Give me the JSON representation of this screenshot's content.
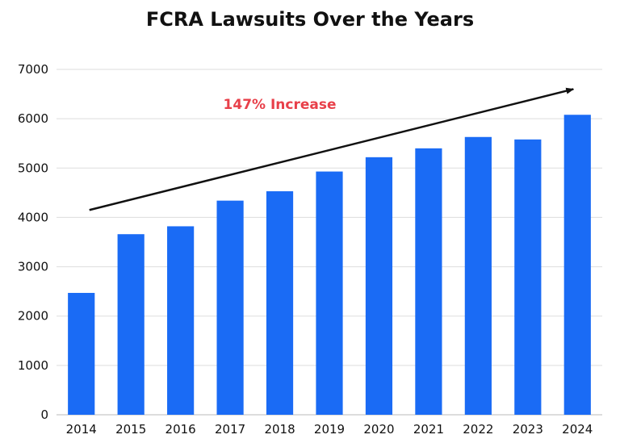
{
  "chart_data": {
    "type": "bar",
    "title": "FCRA Lawsuits Over the Years",
    "categories": [
      "2014",
      "2015",
      "2016",
      "2017",
      "2018",
      "2019",
      "2020",
      "2021",
      "2022",
      "2023",
      "2024"
    ],
    "values": [
      2470,
      3660,
      3820,
      4340,
      4530,
      4930,
      5220,
      5400,
      5630,
      5580,
      6080
    ],
    "ylim": [
      0,
      7000
    ],
    "yticks": [
      0,
      1000,
      2000,
      3000,
      4000,
      5000,
      6000,
      7000
    ],
    "grid": true,
    "bar_color": "#1a6bf5",
    "annotation": {
      "text": "147% Increase",
      "color": "#e8404a",
      "arrow_color": "#111111"
    }
  }
}
